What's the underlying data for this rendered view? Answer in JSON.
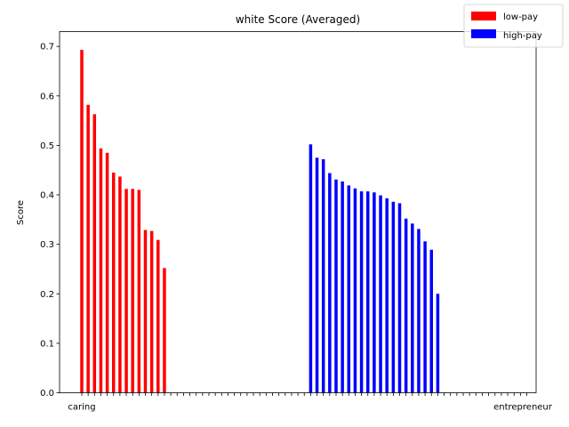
{
  "chart_data": {
    "type": "bar",
    "title": "white Score (Averaged)",
    "xlabel": "",
    "ylabel": "Score",
    "ylim": [
      0,
      0.73
    ],
    "yticks": [
      "0.0",
      "0.1",
      "0.2",
      "0.3",
      "0.4",
      "0.5",
      "0.6",
      "0.7"
    ],
    "yticks_values": [
      0.0,
      0.1,
      0.2,
      0.3,
      0.4,
      0.5,
      0.6,
      0.7
    ],
    "grid": false,
    "legend_placement": "top-right",
    "x_tick_labels_first": "caring",
    "x_tick_labels_last": "entrepreneur",
    "series": [
      {
        "name": "low-pay",
        "color": "#ff0000",
        "values": [
          0.693,
          0.582,
          0.563,
          0.494,
          0.485,
          0.445,
          0.437,
          0.412,
          0.412,
          0.41,
          0.329,
          0.327,
          0.309,
          0.252,
          0,
          0,
          0,
          0,
          0,
          0,
          0,
          0,
          0,
          0,
          0,
          0,
          0,
          0,
          0,
          0,
          0,
          0,
          0,
          0,
          0,
          0,
          0,
          0,
          0,
          0,
          0,
          0,
          0,
          0,
          0,
          0,
          0,
          0,
          0,
          0,
          0,
          0,
          0,
          0,
          0,
          0,
          0,
          0,
          0,
          0,
          0,
          0,
          0,
          0,
          0,
          0,
          0,
          0,
          0,
          0,
          0
        ]
      },
      {
        "name": "high-pay",
        "color": "#0000ff",
        "values": [
          0,
          0,
          0,
          0,
          0,
          0,
          0,
          0,
          0,
          0,
          0,
          0,
          0,
          0,
          0,
          0,
          0,
          0,
          0,
          0,
          0,
          0,
          0,
          0,
          0,
          0,
          0,
          0,
          0,
          0,
          0,
          0,
          0,
          0,
          0,
          0,
          0.502,
          0.475,
          0.472,
          0.444,
          0.431,
          0.427,
          0.419,
          0.413,
          0.407,
          0.407,
          0.405,
          0.399,
          0.393,
          0.386,
          0.383,
          0.352,
          0.342,
          0.331,
          0.306,
          0.289,
          0.2,
          0,
          0,
          0,
          0,
          0,
          0,
          0,
          0,
          0,
          0,
          0,
          0,
          0,
          0
        ]
      }
    ]
  }
}
